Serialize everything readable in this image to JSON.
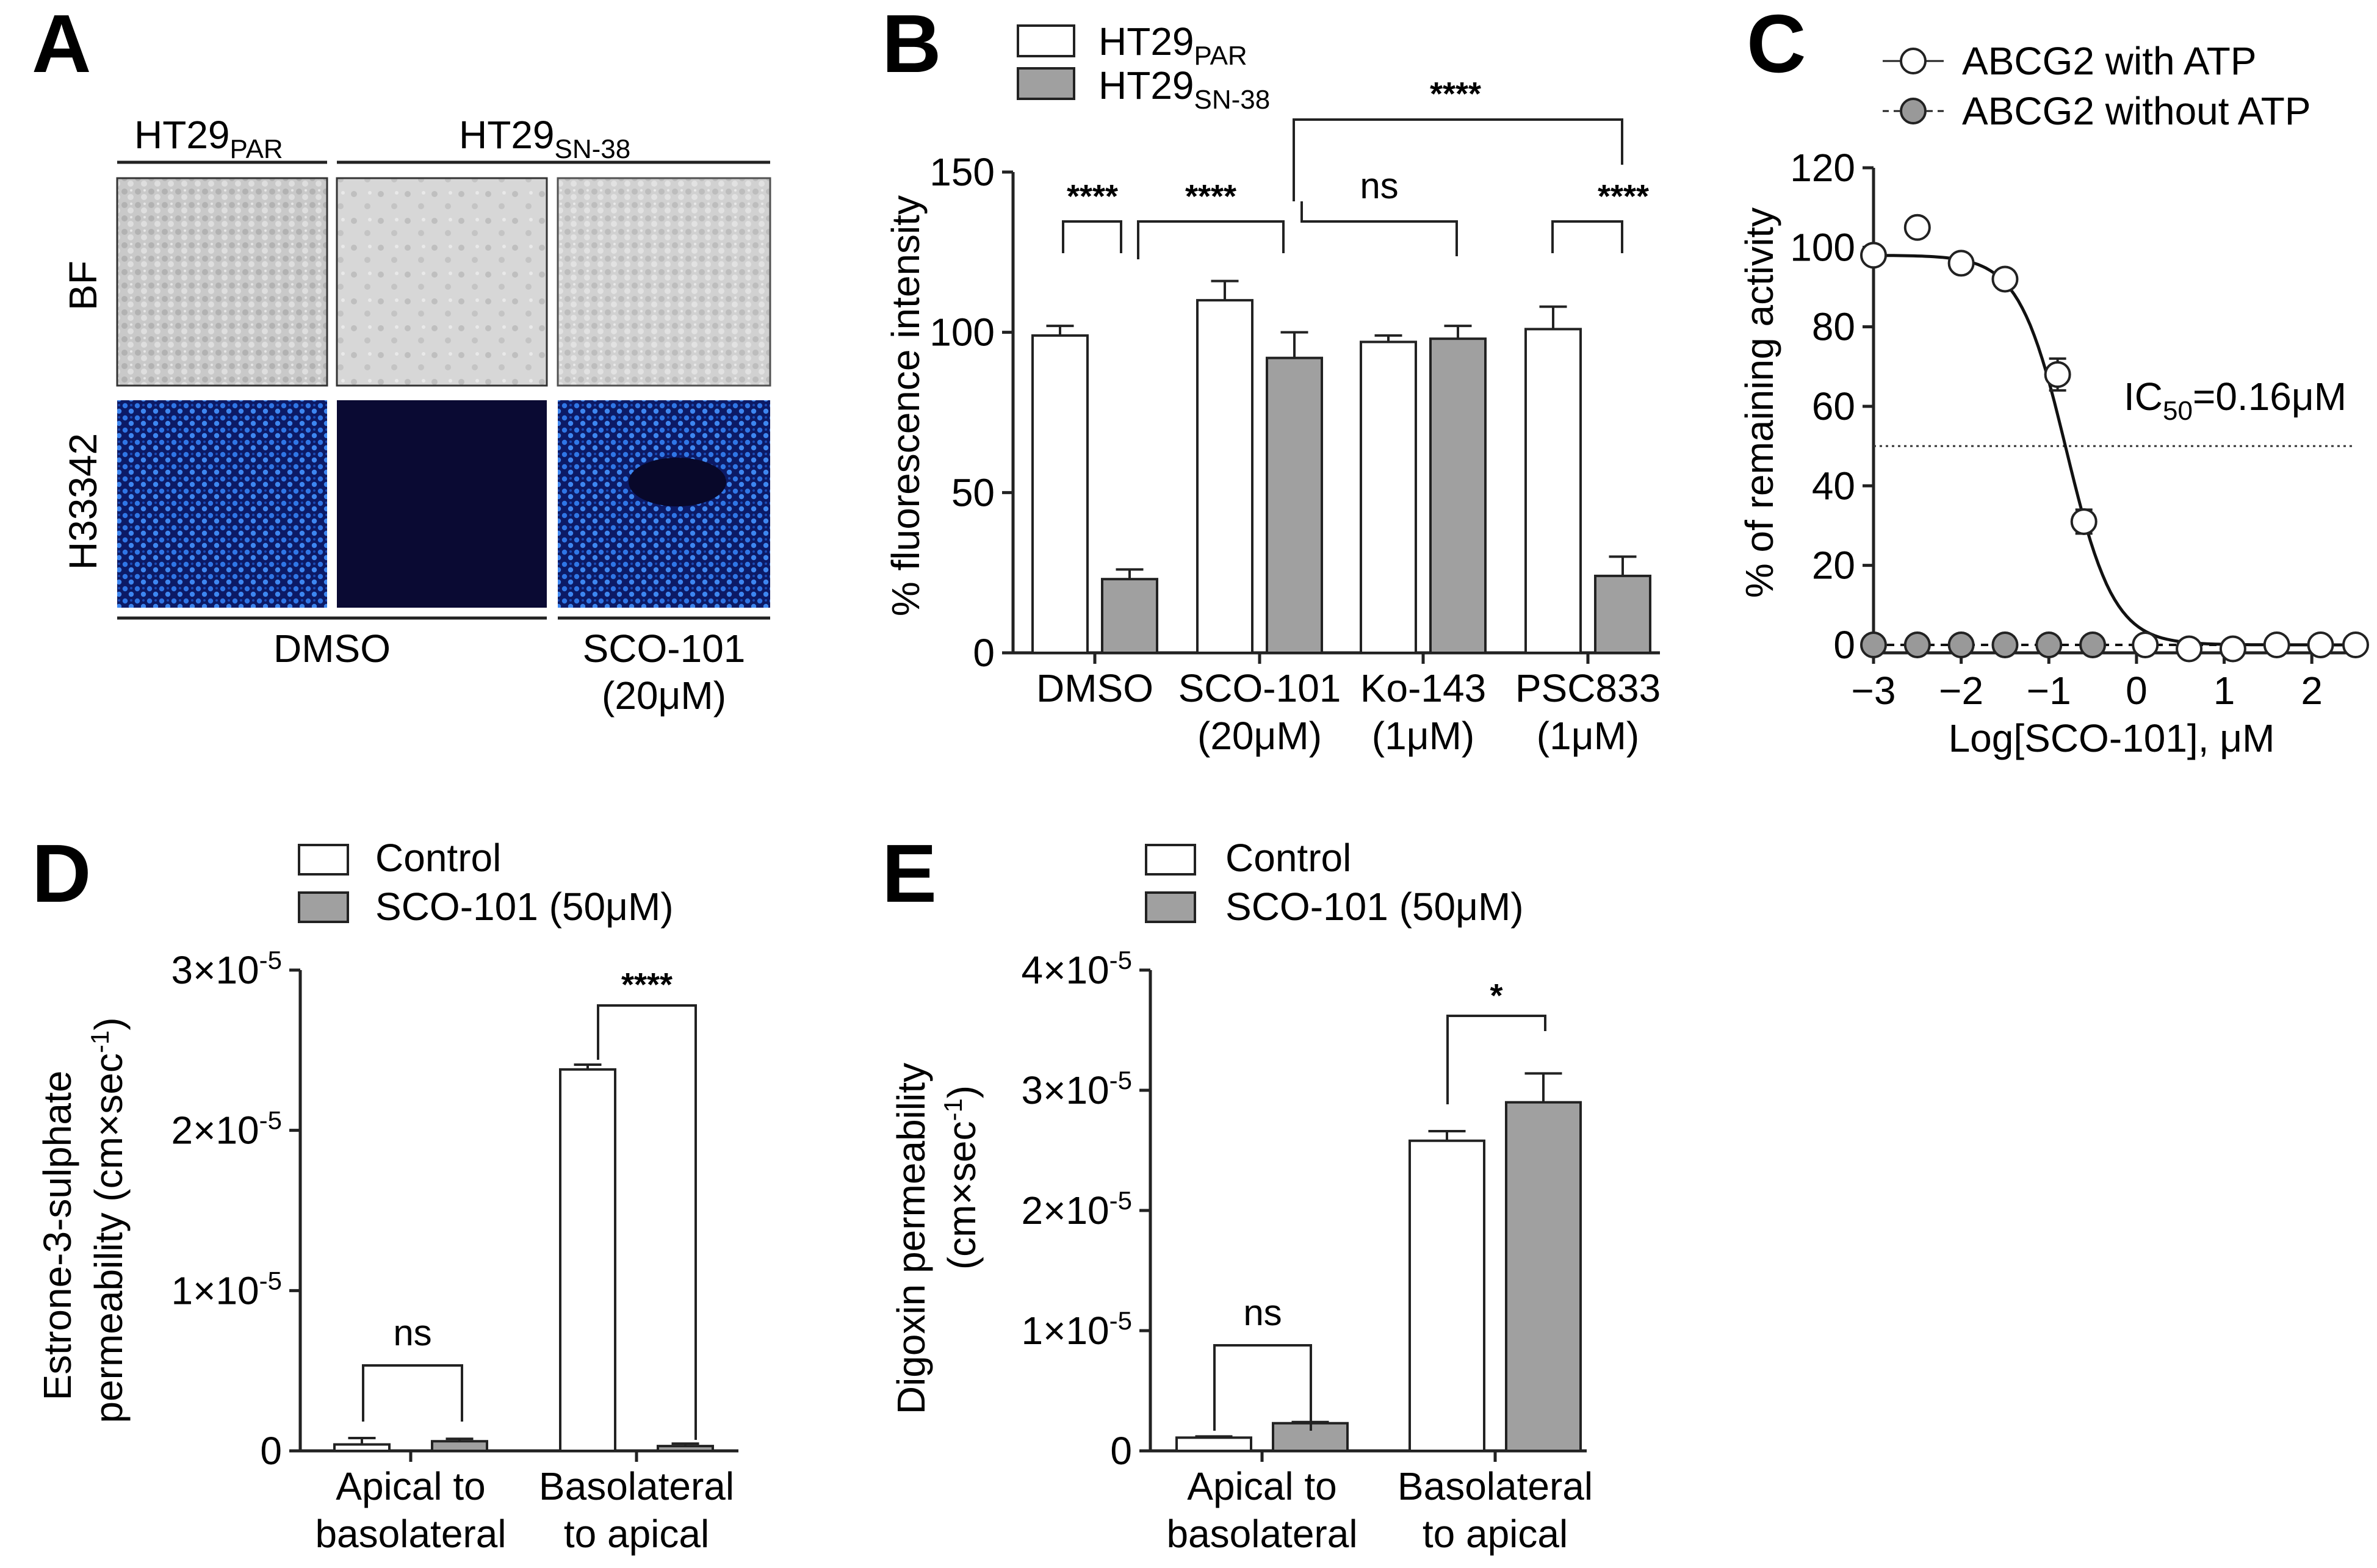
{
  "panels": {
    "A": {
      "label": "A",
      "col_par": "HT29",
      "col_par_sub": "PAR",
      "col_sn": "HT29",
      "col_sn_sub": "SN-38",
      "row_bf": "BF",
      "row_h": "H33342",
      "bottom_dmso": "DMSO",
      "bottom_sco_1": "SCO-101",
      "bottom_sco_2": "(20μM)",
      "colors": {
        "bf": "#c8c8c8",
        "h_blue": "#2a6bd8",
        "h_dark": "#0a0a33"
      }
    },
    "B": {
      "label": "B",
      "legend": [
        {
          "text": "HT29",
          "sub": "PAR",
          "color": "#ffffff"
        },
        {
          "text": "HT29",
          "sub": "SN-38",
          "color": "#a0a0a0"
        }
      ],
      "ylabel": "% fluorescence intensity",
      "yticks": [
        "0",
        "50",
        "100",
        "150"
      ],
      "groups": [
        {
          "l1": "DMSO",
          "l2": ""
        },
        {
          "l1": "SCO-101",
          "l2": "(20μM)"
        },
        {
          "l1": "Ko-143",
          "l2": "(1μM)"
        },
        {
          "l1": "PSC833",
          "l2": "(1μM)"
        }
      ],
      "sig": {
        "s1": "****",
        "s2": "****",
        "s3": "ns",
        "s4": "****",
        "s5": "****"
      }
    },
    "C": {
      "label": "C",
      "legend1": "ABCG2 with ATP",
      "legend2": "ABCG2 without ATP",
      "ylabel": "% of remaining activity",
      "xlabel": "Log[SCO-101], μM",
      "ic50_text": "IC",
      "ic50_sub": "50",
      "ic50_value": "=0.16μM",
      "yticks": [
        "0",
        "20",
        "40",
        "60",
        "80",
        "100",
        "120"
      ],
      "xticks": [
        "−3",
        "−2",
        "−1",
        "0",
        "1",
        "2"
      ]
    },
    "D": {
      "label": "D",
      "legend1": "Control",
      "legend2": "SCO-101 (50μM)",
      "ylabel1": "Estrone-3-sulphate",
      "ylabel2": "permeability (cm×sec",
      "ylabel2_sup": "-1",
      "ylabel2_end": ")",
      "ytick_base": "×10",
      "ytick_exp": "-5",
      "yticks": [
        "0",
        "1",
        "2",
        "3"
      ],
      "groups": [
        {
          "l1": "Apical to",
          "l2": "basolateral"
        },
        {
          "l1": "Basolateral",
          "l2": "to apical"
        }
      ],
      "sig": {
        "s1": "ns",
        "s2": "****"
      }
    },
    "E": {
      "label": "E",
      "legend1": "Control",
      "legend2": "SCO-101 (50μM)",
      "ylabel1": "Digoxin permeability",
      "ylabel2": "(cm×sec",
      "ylabel2_sup": "-1",
      "ylabel2_end": ")",
      "ytick_base": "×10",
      "ytick_exp": "-5",
      "yticks": [
        "0",
        "1",
        "2",
        "3",
        "4"
      ],
      "groups": [
        {
          "l1": "Apical to",
          "l2": "basolateral"
        },
        {
          "l1": "Basolateral",
          "l2": "to apical"
        }
      ],
      "sig": {
        "s1": "ns",
        "s2": "*"
      }
    }
  },
  "chart_data": [
    {
      "type": "bar",
      "panel": "B",
      "ylabel": "% fluorescence intensity",
      "ylim": [
        0,
        150
      ],
      "categories": [
        "DMSO",
        "SCO-101 (20μM)",
        "Ko-143 (1μM)",
        "PSC833 (1μM)"
      ],
      "series": [
        {
          "name": "HT29 PAR",
          "color": "#ffffff",
          "values": [
            99,
            110,
            97,
            101
          ],
          "errors": [
            3,
            6,
            2,
            7
          ]
        },
        {
          "name": "HT29 SN-38",
          "color": "#a0a0a0",
          "values": [
            23,
            92,
            98,
            24
          ],
          "errors": [
            3,
            8,
            4,
            6
          ]
        }
      ]
    },
    {
      "type": "scatter",
      "panel": "C",
      "xlabel": "Log[SCO-101], μM",
      "ylabel": "% of remaining activity",
      "xlim": [
        -3,
        2.5
      ],
      "ylim": [
        -2,
        120
      ],
      "series": [
        {
          "name": "ABCG2 with ATP",
          "fill": "#ffffff",
          "x": [
            -3,
            -2.5,
            -2,
            -1.5,
            -0.9,
            -0.6,
            0.1,
            0.6,
            1.1,
            1.6,
            2.1,
            2.5
          ],
          "y": [
            98,
            105,
            96,
            92,
            68,
            31,
            0,
            -1,
            -1,
            0,
            0,
            0
          ],
          "errors": [
            0,
            0,
            0,
            0,
            4,
            3,
            0,
            0,
            0,
            0,
            0,
            0
          ],
          "fit_ic50_log": -0.8,
          "fit_top": 98,
          "fit_bottom": 0,
          "fit_hill": 1.6
        },
        {
          "name": "ABCG2 without ATP",
          "fill": "#999999",
          "x": [
            -3,
            -2.5,
            -2,
            -1.5,
            -1.0,
            -0.5
          ],
          "y": [
            0,
            0,
            0,
            0,
            0,
            0
          ]
        }
      ],
      "annotation": "IC50=0.16μM",
      "ic50_line_y": 50
    },
    {
      "type": "bar",
      "panel": "D",
      "ylabel": "Estrone-3-sulphate permeability (cm×sec-1)",
      "ylim": [
        0,
        3e-05
      ],
      "categories": [
        "Apical to basolateral",
        "Basolateral to apical"
      ],
      "series": [
        {
          "name": "Control",
          "color": "#ffffff",
          "values": [
            4e-07,
            2.38e-05
          ],
          "errors": [
            4e-07,
            3e-07
          ]
        },
        {
          "name": "SCO-101 (50μM)",
          "color": "#a0a0a0",
          "values": [
            6e-07,
            3e-07
          ],
          "errors": [
            1.5e-07,
            1.5e-07
          ]
        }
      ]
    },
    {
      "type": "bar",
      "panel": "E",
      "ylabel": "Digoxin permeability (cm×sec-1)",
      "ylim": [
        0,
        4e-05
      ],
      "categories": [
        "Apical to basolateral",
        "Basolateral to apical"
      ],
      "series": [
        {
          "name": "Control",
          "color": "#ffffff",
          "values": [
            1.1e-06,
            2.58e-05
          ],
          "errors": [
            1e-07,
            8e-07
          ]
        },
        {
          "name": "SCO-101 (50μM)",
          "color": "#a0a0a0",
          "values": [
            2.3e-06,
            2.9e-05
          ],
          "errors": [
            1e-07,
            2.4e-06
          ]
        }
      ]
    }
  ]
}
